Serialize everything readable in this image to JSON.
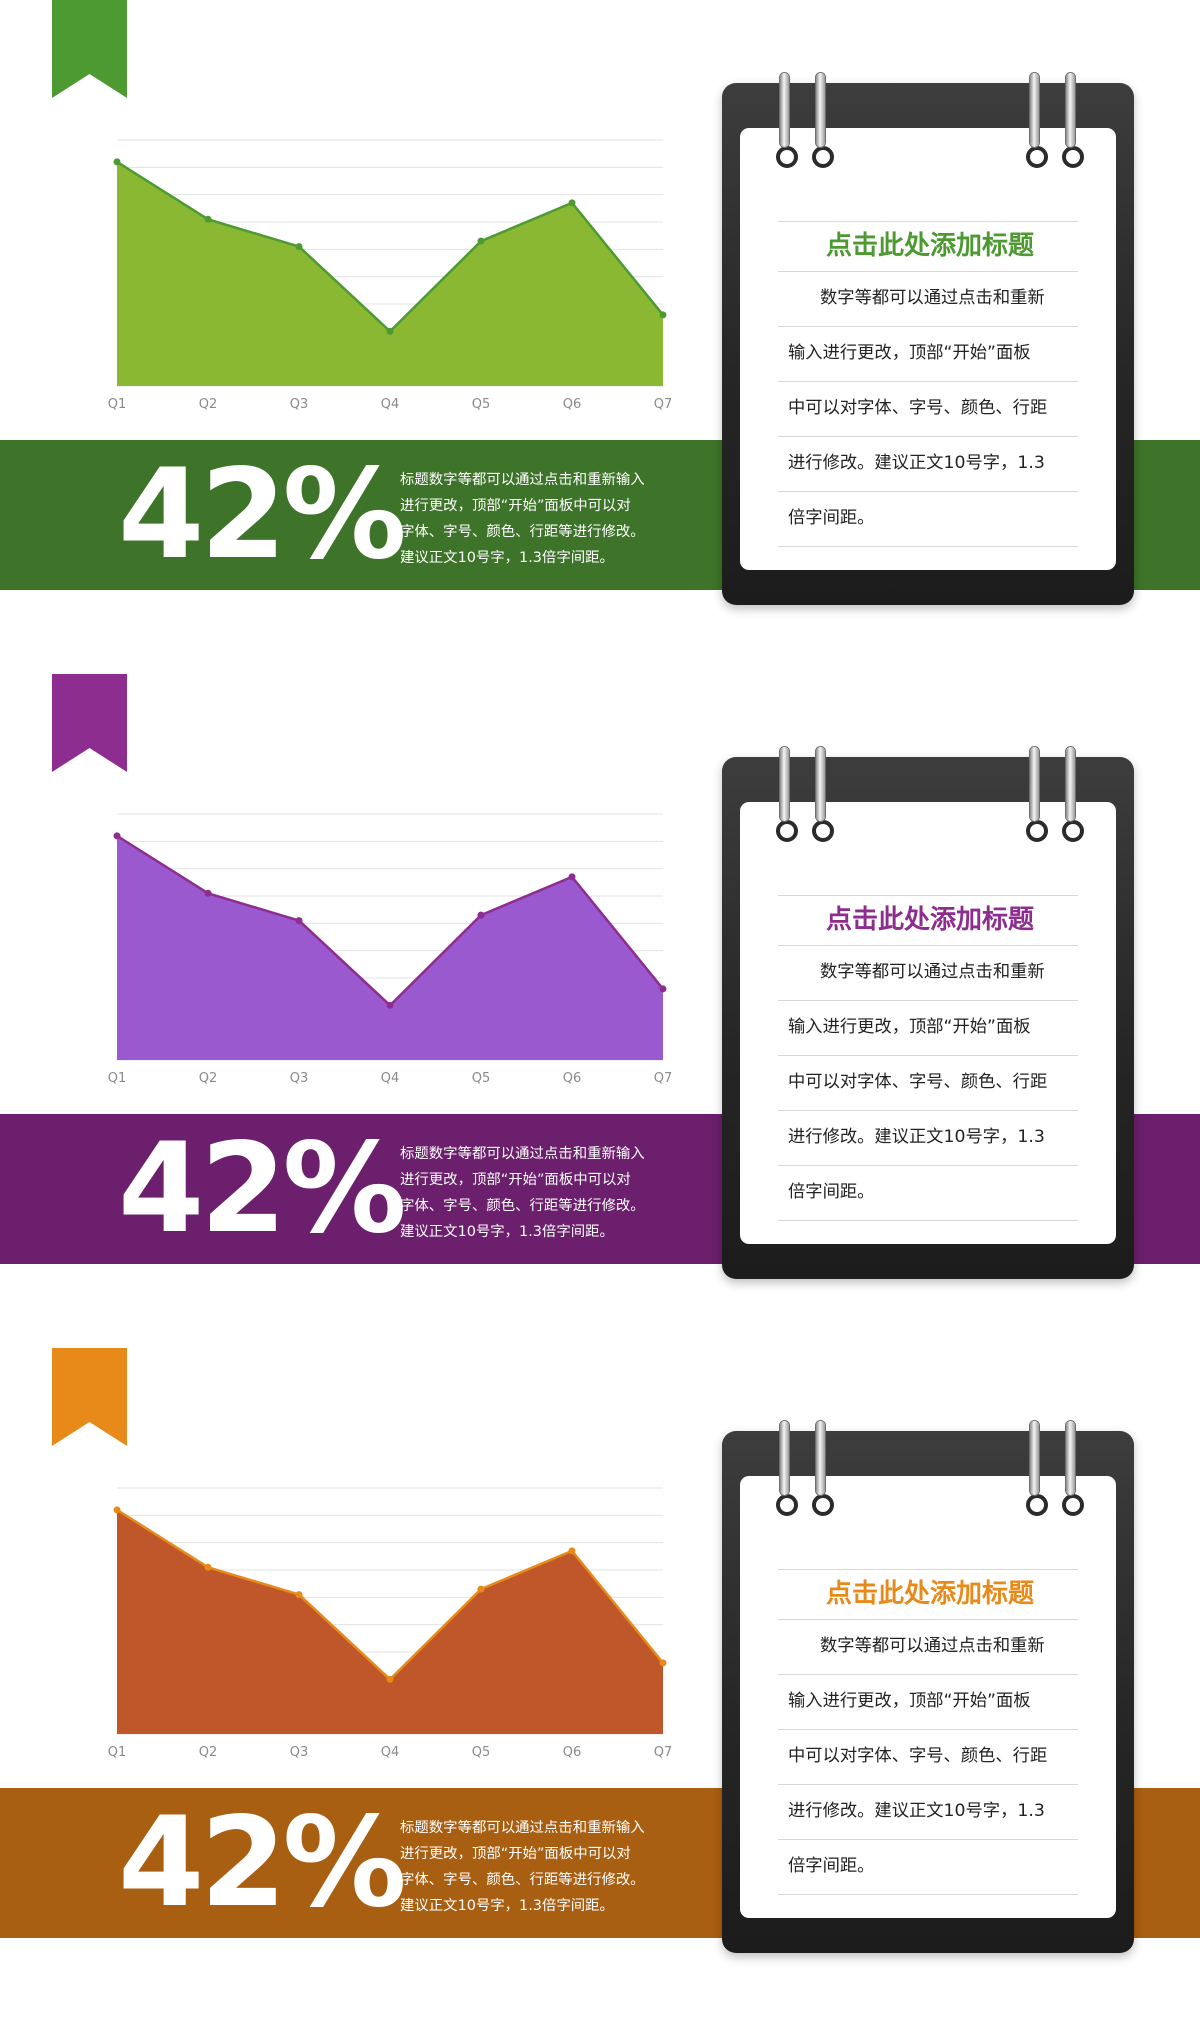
{
  "sections": [
    {
      "colors": {
        "ribbon": "#4e9a32",
        "fill": "#8ab832",
        "line": "#4e9a32",
        "band": "#3d7429",
        "title": "#4e9a32"
      },
      "big_number": "42%",
      "band_lines": [
        "标题数字等都可以通过点击和重新输入",
        "进行更改，顶部“开始”面板中可以对",
        "字体、字号、颜色、行距等进行修改。",
        "建议正文10号字，1.3倍字间距。"
      ],
      "notebook": {
        "title": "点击此处添加标题",
        "lines": [
          "数字等都可以通过点击和重新",
          "输入进行更改，顶部“开始”面板",
          "中可以对字体、字号、颜色、行距",
          "进行修改。建议正文10号字，1.3",
          "倍字间距。"
        ]
      },
      "chart_data": {
        "type": "area",
        "categories": [
          "Q1",
          "Q2",
          "Q3",
          "Q4",
          "Q5",
          "Q6",
          "Q7"
        ],
        "values": [
          82,
          61,
          51,
          20,
          53,
          67,
          26
        ],
        "ylim": [
          0,
          90
        ],
        "grid": true
      }
    },
    {
      "colors": {
        "ribbon": "#8d2d8f",
        "fill": "#9b59d0",
        "line": "#8d2d8f",
        "band": "#6b1f6c",
        "title": "#8d2d8f"
      },
      "big_number": "42%",
      "band_lines": [
        "标题数字等都可以通过点击和重新输入",
        "进行更改，顶部“开始”面板中可以对",
        "字体、字号、颜色、行距等进行修改。",
        "建议正文10号字，1.3倍字间距。"
      ],
      "notebook": {
        "title": "点击此处添加标题",
        "lines": [
          "数字等都可以通过点击和重新",
          "输入进行更改，顶部“开始”面板",
          "中可以对字体、字号、颜色、行距",
          "进行修改。建议正文10号字，1.3",
          "倍字间距。"
        ]
      },
      "chart_data": {
        "type": "area",
        "categories": [
          "Q1",
          "Q2",
          "Q3",
          "Q4",
          "Q5",
          "Q6",
          "Q7"
        ],
        "values": [
          82,
          61,
          51,
          20,
          53,
          67,
          26
        ],
        "ylim": [
          0,
          90
        ],
        "grid": true
      }
    },
    {
      "colors": {
        "ribbon": "#e88a1a",
        "fill": "#c0572b",
        "line": "#e88a1a",
        "band": "#a95f11",
        "title": "#e88a1a"
      },
      "big_number": "42%",
      "band_lines": [
        "标题数字等都可以通过点击和重新输入",
        "进行更改，顶部“开始”面板中可以对",
        "字体、字号、颜色、行距等进行修改。",
        "建议正文10号字，1.3倍字间距。"
      ],
      "notebook": {
        "title": "点击此处添加标题",
        "lines": [
          "数字等都可以通过点击和重新",
          "输入进行更改，顶部“开始”面板",
          "中可以对字体、字号、颜色、行距",
          "进行修改。建议正文10号字，1.3",
          "倍字间距。"
        ]
      },
      "chart_data": {
        "type": "area",
        "categories": [
          "Q1",
          "Q2",
          "Q3",
          "Q4",
          "Q5",
          "Q6",
          "Q7"
        ],
        "values": [
          82,
          61,
          51,
          20,
          53,
          67,
          26
        ],
        "ylim": [
          0,
          90
        ],
        "grid": true
      }
    }
  ]
}
